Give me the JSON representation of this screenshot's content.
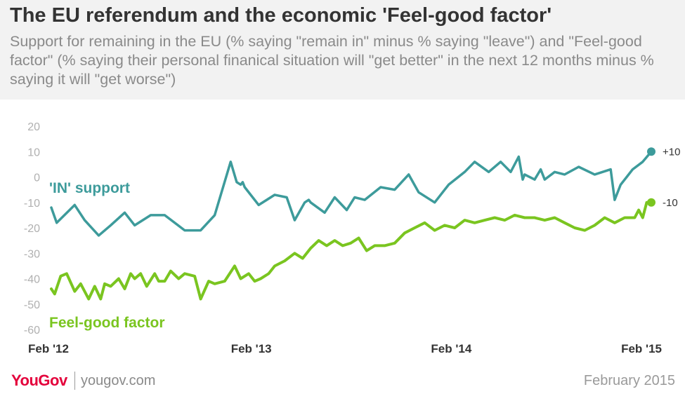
{
  "title": "The EU referendum and the economic 'Feel-good factor'",
  "subtitle": "Support for remaining in the EU (% saying \"remain in\" minus % saying \"leave\") and \"Feel-good factor\" (% saying their personal finanical situation will \"get better\" in the next 12 months minus % saying it will \"get worse\")",
  "footer": {
    "logo": "YouGov",
    "url": "yougov.com",
    "date": "February 2015"
  },
  "colors": {
    "in_support": "#3d9b9b",
    "feel_good": "#7ac520",
    "axis_text": "#b0b0b0",
    "title": "#333333"
  },
  "chart_data": {
    "type": "line",
    "ylim": [
      -60,
      20
    ],
    "yticks": [
      "20",
      "10",
      "0",
      "-10",
      "-20",
      "-30",
      "-40",
      "-50",
      "-60"
    ],
    "xticks": [
      "Feb '12",
      "Feb '13",
      "Feb '14",
      "Feb '15"
    ],
    "xlim": [
      2012.083,
      2015.083
    ],
    "grid": false,
    "series": [
      {
        "name": "'IN' support",
        "end_label": "+10",
        "x": [
          2012.083,
          2012.11,
          2012.2,
          2012.25,
          2012.32,
          2012.38,
          2012.45,
          2012.5,
          2012.58,
          2012.65,
          2012.75,
          2012.83,
          2012.9,
          2012.98,
          2013.01,
          2013.03,
          2013.04,
          2013.05,
          2013.12,
          2013.2,
          2013.26,
          2013.3,
          2013.35,
          2013.37,
          2013.38,
          2013.45,
          2013.5,
          2013.56,
          2013.6,
          2013.65,
          2013.73,
          2013.8,
          2013.87,
          2013.92,
          2014.0,
          2014.07,
          2014.15,
          2014.2,
          2014.27,
          2014.33,
          2014.38,
          2014.42,
          2014.44,
          2014.45,
          2014.5,
          2014.53,
          2014.55,
          2014.6,
          2014.65,
          2014.72,
          2014.8,
          2014.88,
          2014.9,
          2014.93,
          2014.96,
          2014.99,
          2015.04,
          2015.083
        ],
        "values": [
          -12,
          -18,
          -11,
          -17,
          -23,
          -19,
          -14,
          -19,
          -15,
          -15,
          -21,
          -21,
          -15,
          6,
          -2,
          -3,
          -2,
          -4,
          -11,
          -7,
          -8,
          -17,
          -10,
          -9,
          -10,
          -14,
          -8,
          -13,
          -8,
          -9,
          -4,
          -5,
          1,
          -6,
          -10,
          -3,
          2,
          6,
          2,
          6,
          2,
          8,
          -1,
          1,
          -1,
          3,
          -1,
          2,
          1,
          4,
          1,
          3,
          -9,
          -3,
          0,
          3,
          6,
          10
        ]
      },
      {
        "name": "Feel-good factor",
        "end_label": "-10",
        "x": [
          2012.083,
          2012.1,
          2012.13,
          2012.16,
          2012.2,
          2012.23,
          2012.27,
          2012.3,
          2012.33,
          2012.35,
          2012.38,
          2012.42,
          2012.45,
          2012.48,
          2012.5,
          2012.53,
          2012.56,
          2012.6,
          2012.62,
          2012.65,
          2012.68,
          2012.72,
          2012.75,
          2012.8,
          2012.83,
          2012.87,
          2012.9,
          2012.95,
          2013.0,
          2013.03,
          2013.07,
          2013.1,
          2013.13,
          2013.17,
          2013.2,
          2013.25,
          2013.3,
          2013.34,
          2013.38,
          2013.42,
          2013.46,
          2013.5,
          2013.54,
          2013.58,
          2013.62,
          2013.66,
          2013.7,
          2013.75,
          2013.8,
          2013.85,
          2013.9,
          2013.95,
          2014.0,
          2014.05,
          2014.1,
          2014.15,
          2014.2,
          2014.25,
          2014.3,
          2014.35,
          2014.4,
          2014.45,
          2014.5,
          2014.55,
          2014.6,
          2014.65,
          2014.7,
          2014.75,
          2014.8,
          2014.85,
          2014.9,
          2014.95,
          2015.0,
          2015.02,
          2015.04,
          2015.06,
          2015.083
        ],
        "values": [
          -44,
          -46,
          -39,
          -38,
          -45,
          -42,
          -48,
          -43,
          -48,
          -42,
          -43,
          -40,
          -44,
          -38,
          -40,
          -38,
          -43,
          -38,
          -41,
          -41,
          -37,
          -40,
          -38,
          -39,
          -48,
          -41,
          -42,
          -41,
          -35,
          -40,
          -38,
          -41,
          -40,
          -38,
          -35,
          -33,
          -30,
          -32,
          -28,
          -25,
          -27,
          -25,
          -27,
          -26,
          -24,
          -29,
          -27,
          -27,
          -26,
          -22,
          -20,
          -18,
          -21,
          -19,
          -20,
          -17,
          -18,
          -17,
          -16,
          -17,
          -15,
          -16,
          -16,
          -17,
          -16,
          -18,
          -20,
          -21,
          -19,
          -16,
          -18,
          -16,
          -16,
          -13,
          -16,
          -10,
          -10
        ]
      }
    ]
  }
}
